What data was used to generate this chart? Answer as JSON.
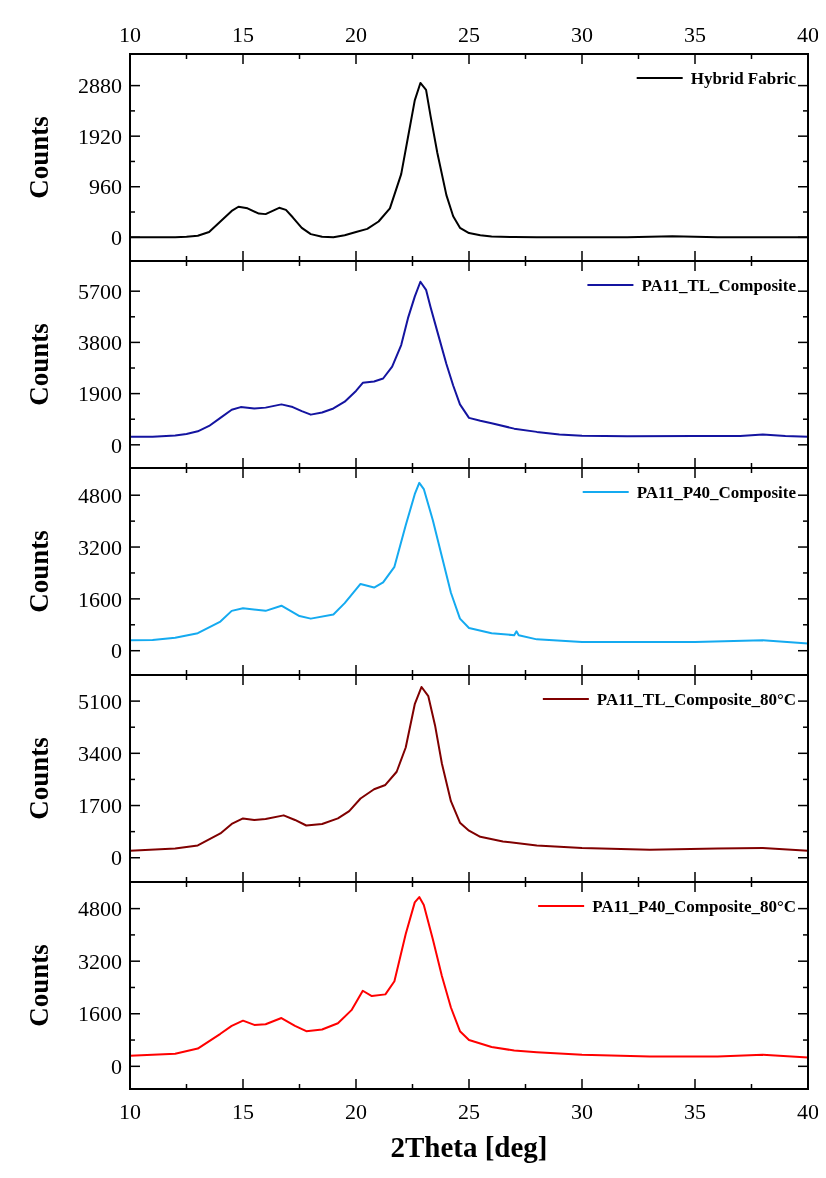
{
  "chart_data": [
    {
      "type": "line",
      "ylabel": "Counts",
      "xlim": [
        10,
        40
      ],
      "xticks": [
        10,
        15,
        20,
        25,
        30,
        35,
        40
      ],
      "x2lim": [
        10,
        40
      ],
      "x2ticks": [
        10,
        15,
        20,
        25,
        30,
        35,
        40
      ],
      "ylim": [
        -450,
        3480
      ],
      "yticks": [
        0,
        960,
        1920,
        2880
      ],
      "tick_labels": "y",
      "legend": "top right",
      "series": [
        {
          "name": "Hybrid Fabric",
          "color": "#000000",
          "x": [
            10,
            11,
            12,
            12.5,
            13,
            13.5,
            14,
            14.5,
            14.8,
            15.2,
            15.7,
            16,
            16.6,
            16.9,
            17.2,
            17.6,
            18,
            18.5,
            19,
            19.5,
            20,
            20.5,
            21,
            21.5,
            22,
            22.3,
            22.6,
            22.85,
            23.1,
            23.3,
            23.6,
            24,
            24.3,
            24.6,
            25,
            25.5,
            26,
            27,
            28,
            30,
            32,
            34,
            36,
            38,
            40
          ],
          "values": [
            0,
            0,
            0,
            10,
            30,
            100,
            300,
            500,
            580,
            550,
            450,
            440,
            560,
            520,
            380,
            180,
            60,
            10,
            0,
            40,
            100,
            160,
            300,
            550,
            1200,
            1900,
            2600,
            2930,
            2800,
            2300,
            1600,
            800,
            400,
            180,
            80,
            40,
            15,
            5,
            0,
            0,
            0,
            20,
            0,
            0,
            0
          ]
        }
      ]
    },
    {
      "type": "line",
      "ylabel": "Counts",
      "xlim": [
        10,
        40
      ],
      "xticks": [
        10,
        15,
        20,
        25,
        30,
        35,
        40
      ],
      "ylim": [
        -860,
        6820
      ],
      "yticks": [
        0,
        1900,
        3800,
        5700
      ],
      "tick_labels": "y",
      "legend": "top right",
      "series": [
        {
          "name": "PA11_TL_Composite",
          "color": "#1414a0",
          "x": [
            10,
            11,
            12,
            12.5,
            13,
            13.5,
            14,
            14.5,
            14.9,
            15.5,
            16,
            16.7,
            17.2,
            17.6,
            18,
            18.5,
            19,
            19.5,
            20,
            20.3,
            20.8,
            21.2,
            21.6,
            22,
            22.3,
            22.6,
            22.85,
            23.1,
            23.3,
            23.6,
            24,
            24.3,
            24.6,
            25,
            25.5,
            26,
            27,
            28,
            29,
            30,
            32,
            35,
            37,
            38,
            39,
            40
          ],
          "values": [
            300,
            300,
            350,
            400,
            500,
            700,
            1000,
            1300,
            1400,
            1350,
            1380,
            1500,
            1400,
            1250,
            1120,
            1200,
            1350,
            1600,
            2000,
            2300,
            2350,
            2460,
            2900,
            3700,
            4700,
            5500,
            6050,
            5750,
            5100,
            4200,
            3000,
            2200,
            1500,
            1000,
            890,
            800,
            600,
            480,
            380,
            335,
            320,
            330,
            330,
            380,
            330,
            300
          ]
        }
      ]
    },
    {
      "type": "line",
      "ylabel": "Counts",
      "xlim": [
        10,
        40
      ],
      "xticks": [
        10,
        15,
        20,
        25,
        30,
        35,
        40
      ],
      "ylim": [
        -750,
        5640
      ],
      "yticks": [
        0,
        1600,
        3200,
        4800
      ],
      "tick_labels": "y",
      "legend": "top right",
      "series": [
        {
          "name": "PA11_P40_Composite",
          "color": "#14aaf0",
          "x": [
            10,
            11,
            12,
            13,
            14,
            14.5,
            15,
            16,
            16.7,
            17.5,
            18,
            19,
            19.5,
            20.2,
            20.8,
            21.2,
            21.7,
            22.2,
            22.6,
            22.8,
            23,
            23.4,
            23.8,
            24.2,
            24.6,
            25,
            26,
            27,
            27.1,
            27.2,
            28,
            30,
            35,
            38,
            40
          ],
          "values": [
            320,
            330,
            400,
            540,
            900,
            1230,
            1310,
            1230,
            1390,
            1070,
            990,
            1120,
            1470,
            2060,
            1950,
            2110,
            2590,
            3870,
            4830,
            5180,
            4990,
            4030,
            2910,
            1790,
            990,
            700,
            540,
            480,
            600,
            480,
            350,
            270,
            270,
            320,
            220
          ]
        }
      ]
    },
    {
      "type": "line",
      "ylabel": "Counts",
      "xlim": [
        10,
        40
      ],
      "xticks": [
        10,
        15,
        20,
        25,
        30,
        35,
        40
      ],
      "ylim": [
        -790,
        5950
      ],
      "yticks": [
        0,
        1700,
        3400,
        5100
      ],
      "tick_labels": "y",
      "legend": "top right",
      "series": [
        {
          "name": "PA11_TL_Composite_80°C",
          "color": "#800000",
          "x": [
            10,
            12,
            13,
            14,
            14.5,
            15,
            15.5,
            16,
            16.8,
            17.3,
            17.8,
            18.5,
            19.2,
            19.7,
            20.2,
            20.8,
            21.3,
            21.8,
            22.2,
            22.6,
            22.9,
            23.2,
            23.5,
            23.8,
            24.2,
            24.6,
            25,
            25.5,
            26.5,
            28,
            30,
            33,
            36,
            38,
            40
          ],
          "values": [
            230,
            300,
            400,
            790,
            1100,
            1280,
            1230,
            1260,
            1380,
            1230,
            1050,
            1100,
            1280,
            1520,
            1930,
            2230,
            2370,
            2800,
            3590,
            5000,
            5560,
            5260,
            4300,
            3070,
            1840,
            1140,
            880,
            680,
            530,
            400,
            320,
            260,
            300,
            320,
            230
          ]
        }
      ]
    },
    {
      "type": "line",
      "ylabel": "Counts",
      "xlabel": "2Theta [deg]",
      "xlim": [
        10,
        40
      ],
      "xticks": [
        10,
        15,
        20,
        25,
        30,
        35,
        40
      ],
      "ylim": [
        -690,
        5610
      ],
      "yticks": [
        0,
        1600,
        3200,
        4800
      ],
      "legend": "top right",
      "series": [
        {
          "name": "PA11_P40_Composite_80°C",
          "color": "#ff0000",
          "x": [
            10,
            12,
            13,
            14,
            14.5,
            15,
            15.5,
            16,
            16.7,
            17.3,
            17.8,
            18.5,
            19.2,
            19.8,
            20.3,
            20.7,
            21.3,
            21.7,
            22.2,
            22.6,
            22.8,
            23,
            23.4,
            23.8,
            24.2,
            24.6,
            25,
            26,
            27,
            28,
            30,
            33,
            36,
            38,
            40
          ],
          "values": [
            320,
            380,
            540,
            990,
            1230,
            1390,
            1260,
            1280,
            1470,
            1230,
            1070,
            1120,
            1310,
            1710,
            2300,
            2140,
            2190,
            2590,
            4030,
            4990,
            5150,
            4910,
            3870,
            2750,
            1790,
            1070,
            800,
            590,
            480,
            430,
            350,
            300,
            300,
            350,
            270
          ]
        }
      ]
    }
  ]
}
